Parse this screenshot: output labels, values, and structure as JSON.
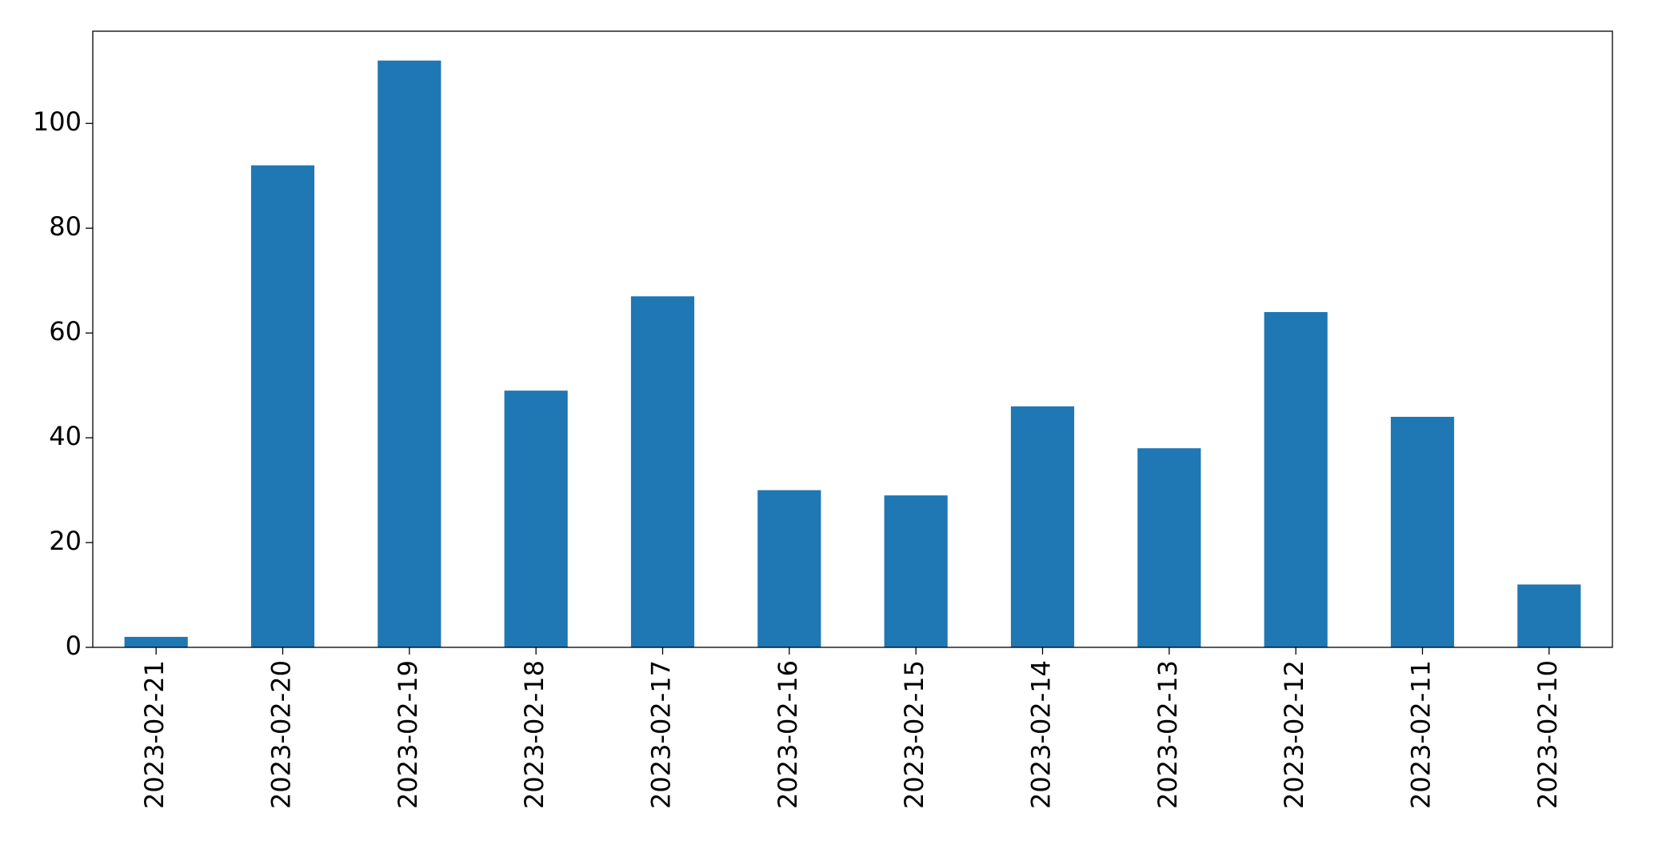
{
  "chart_data": {
    "type": "bar",
    "categories": [
      "2023-02-21",
      "2023-02-20",
      "2023-02-19",
      "2023-02-18",
      "2023-02-17",
      "2023-02-16",
      "2023-02-15",
      "2023-02-14",
      "2023-02-13",
      "2023-02-12",
      "2023-02-11",
      "2023-02-10"
    ],
    "values": [
      2,
      92,
      112,
      49,
      67,
      30,
      29,
      46,
      38,
      64,
      44,
      12
    ],
    "color": "#1f77b4",
    "ylim": [
      0,
      117.6
    ],
    "yticks": [
      0,
      20,
      40,
      60,
      80,
      100
    ],
    "grid": false
  }
}
